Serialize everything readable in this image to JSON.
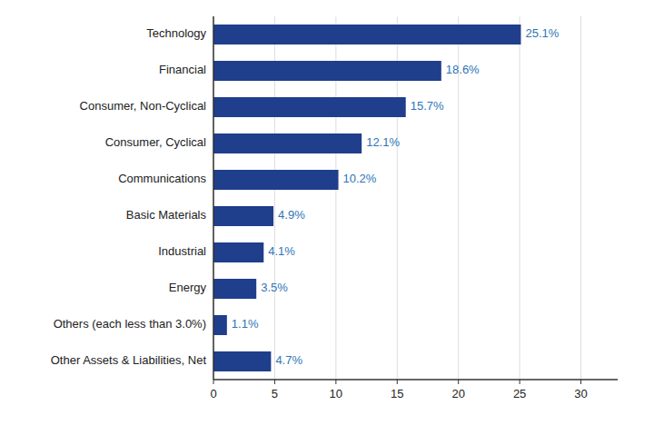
{
  "chart_data": {
    "type": "bar",
    "orientation": "horizontal",
    "categories": [
      "Other Assets & Liabilities, Net",
      "Others (each less than 3.0%)",
      "Energy",
      "Industrial",
      "Basic Materials",
      "Communications",
      "Consumer, Cyclical",
      "Consumer, Non-Cyclical",
      "Financial",
      "Technology"
    ],
    "values": [
      4.7,
      1.1,
      3.5,
      4.1,
      4.9,
      10.2,
      12.1,
      15.7,
      18.6,
      25.1
    ],
    "value_labels": [
      "4.7%",
      "1.1%",
      "3.5%",
      "4.1%",
      "4.9%",
      "10.2%",
      "12.1%",
      "15.7%",
      "18.6%",
      "25.1%"
    ],
    "data_labels": true,
    "color": "#1F3E8C",
    "xlim": [
      0,
      33
    ],
    "xticks": [
      0,
      5,
      10,
      15,
      20,
      25,
      30
    ],
    "grid": true
  }
}
